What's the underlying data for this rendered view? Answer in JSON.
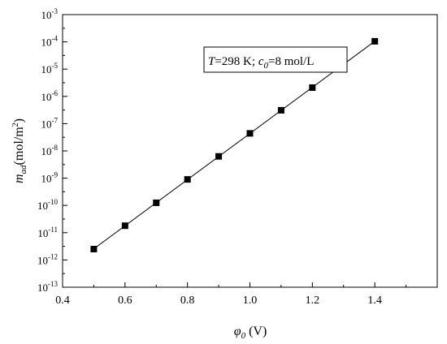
{
  "chart_data": {
    "type": "line",
    "log_y": true,
    "xlim": [
      0.4,
      1.6
    ],
    "ylim_exp": [
      -13,
      -3
    ],
    "x_ticks": [
      "0.4",
      "0.6",
      "0.8",
      "1.0",
      "1.2",
      "1.4"
    ],
    "x_tick_values": [
      0.4,
      0.6,
      0.8,
      1.0,
      1.2,
      1.4
    ],
    "y_tick_exponents": [
      -13,
      -12,
      -11,
      -10,
      -9,
      -8,
      -7,
      -6,
      -5,
      -4,
      -3
    ],
    "y_tick_base": "10",
    "y_tick_labels": [
      "-13",
      "-12",
      "-11",
      "-10",
      "-9",
      "-8",
      "-7",
      "-6",
      "-5",
      "-4",
      "-3"
    ],
    "xlabel": {
      "symbol": "φ",
      "sub": "0",
      "unit": " (V)"
    },
    "ylabel": {
      "symbol": "m",
      "sub": "ad",
      "unit_pre": "(mol/m",
      "unit_sup": "2",
      "unit_post": ")"
    },
    "annotation": {
      "T_sym": "T",
      "T_text": "=298 K; ",
      "c_sym": "c",
      "c_sub": "0",
      "c_text": "=8 mol/L"
    },
    "grid": false,
    "legend": "none",
    "series": [
      {
        "marker": "square",
        "line": true,
        "x": [
          0.5,
          0.6,
          0.7,
          0.8,
          0.9,
          1.0,
          1.1,
          1.2,
          1.3,
          1.4
        ],
        "y": [
          2.5e-12,
          1.8e-11,
          1.25e-10,
          9e-10,
          6.3e-09,
          4.4e-08,
          3.1e-07,
          2.1e-06,
          1.5e-05,
          0.000105
        ]
      }
    ],
    "colors": {
      "axis": "#000000",
      "marker": "#000000",
      "line": "#000000",
      "background": "#ffffff"
    }
  }
}
